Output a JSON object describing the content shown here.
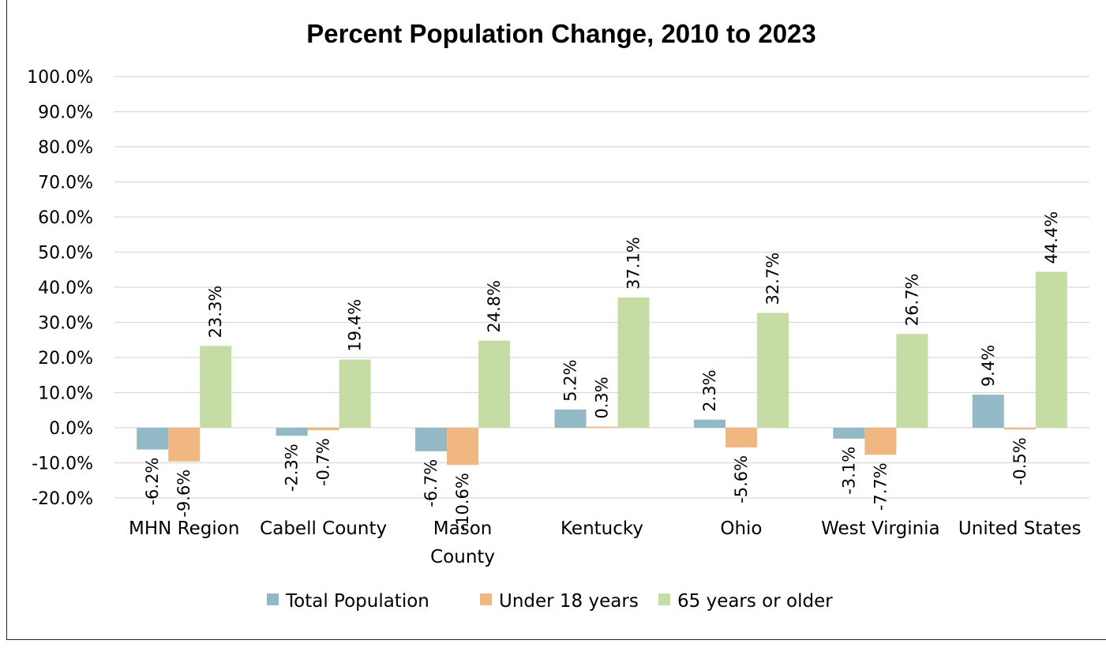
{
  "chart_data": {
    "type": "bar",
    "title": "Percent Population Change, 2010 to 2023",
    "xlabel": "",
    "ylabel": "",
    "ylim": [
      -20,
      100
    ],
    "y_ticks": [
      "100.0%",
      "90.0%",
      "80.0%",
      "70.0%",
      "60.0%",
      "50.0%",
      "40.0%",
      "30.0%",
      "20.0%",
      "10.0%",
      "0.0%",
      "-10.0%",
      "-20.0%"
    ],
    "y_tick_values": [
      100,
      90,
      80,
      70,
      60,
      50,
      40,
      30,
      20,
      10,
      0,
      -10,
      -20
    ],
    "grid": true,
    "legend_position": "bottom",
    "categories": [
      [
        "MHN Region"
      ],
      [
        "Cabell County"
      ],
      [
        "Mason",
        "County"
      ],
      [
        "Kentucky"
      ],
      [
        "Ohio"
      ],
      [
        "West Virginia"
      ],
      [
        "United States"
      ]
    ],
    "series": [
      {
        "name": "Total Population",
        "color": "#93b9c6",
        "values": [
          -6.2,
          -2.3,
          -6.7,
          5.2,
          2.3,
          -3.1,
          9.4
        ],
        "labels": [
          "-6.2%",
          "-2.3%",
          "-6.7%",
          "5.2%",
          "2.3%",
          "-3.1%",
          "9.4%"
        ]
      },
      {
        "name": "Under 18 years",
        "color": "#f0b783",
        "values": [
          -9.6,
          -0.7,
          -10.6,
          0.3,
          -5.6,
          -7.7,
          -0.5
        ],
        "labels": [
          "-9.6%",
          "-0.7%",
          "-10.6%",
          "0.3%",
          "-5.6%",
          "-7.7%",
          "-0.5%"
        ]
      },
      {
        "name": "65 years or older",
        "color": "#c5dda5",
        "values": [
          23.3,
          19.4,
          24.8,
          37.1,
          32.7,
          26.7,
          44.4
        ],
        "labels": [
          "23.3%",
          "19.4%",
          "24.8%",
          "37.1%",
          "32.7%",
          "26.7%",
          "44.4%"
        ]
      }
    ]
  }
}
